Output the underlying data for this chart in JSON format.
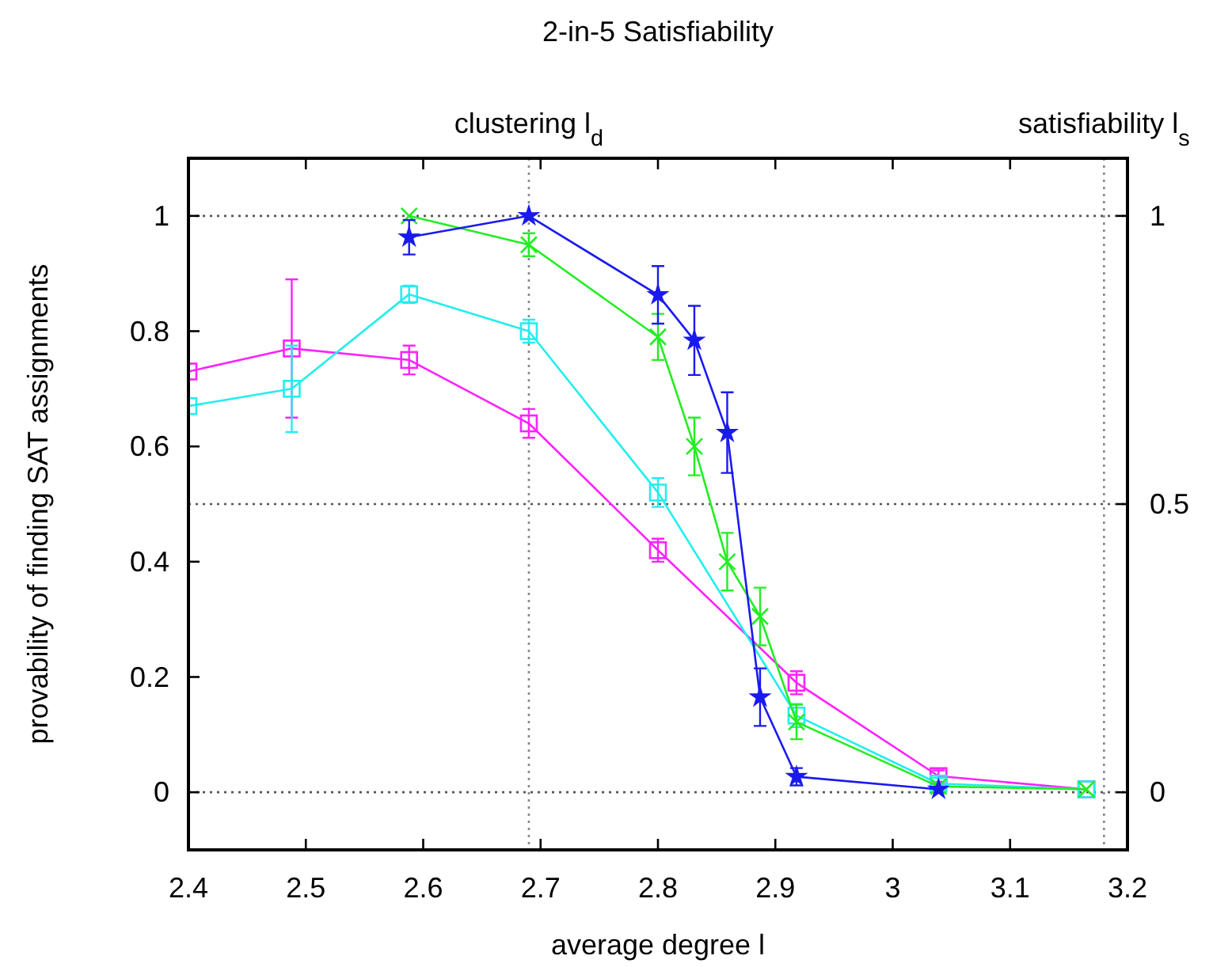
{
  "chart_data": {
    "type": "line",
    "title": "2-in-5 Satisfiability",
    "xlabel": "average degree l",
    "ylabel": "provability of finding SAT assignments",
    "xlim": [
      2.4,
      3.2
    ],
    "xticks": [
      2.4,
      2.5,
      2.6,
      2.7,
      2.8,
      2.9,
      3,
      3.1,
      3.2
    ],
    "ylim": [
      -0.1,
      1.1
    ],
    "yticks": [
      0,
      0.2,
      0.4,
      0.6,
      0.8,
      1
    ],
    "y2lim": [
      -0.1,
      1.1
    ],
    "y2ticks": [
      0,
      0.5,
      1
    ],
    "ref_lines": [
      {
        "axis": "y",
        "value": 0,
        "line_style": "dotted",
        "color": "#555555"
      },
      {
        "axis": "y",
        "value": 0.5,
        "line_style": "dotted",
        "color": "#555555"
      },
      {
        "axis": "y",
        "value": 1,
        "line_style": "dotted",
        "color": "#555555"
      },
      {
        "axis": "x",
        "value": 2.69,
        "label": "clustering l$_{d}$",
        "line_style": "dotted",
        "color": "#888888"
      },
      {
        "axis": "x",
        "value": 3.18,
        "label": "satisfiability l$_{s}$",
        "line_style": "dotted",
        "color": "#888888"
      }
    ],
    "grid": false,
    "line_style": "solid",
    "series": [
      {
        "color": "#ff22ff",
        "marker": "square",
        "x": [
          2.4,
          2.488,
          2.588,
          2.69,
          2.8,
          2.918,
          3.039,
          3.165
        ],
        "values": [
          0.73,
          0.77,
          0.75,
          0.64,
          0.42,
          0.19,
          0.028,
          0.005
        ],
        "errors": [
          null,
          0.12,
          0.025,
          0.025,
          0.02,
          0.02,
          0.01,
          null
        ]
      },
      {
        "color": "#22eeee",
        "marker": "square",
        "x": [
          2.4,
          2.488,
          2.588,
          2.69,
          2.8,
          2.918,
          3.039,
          3.165
        ],
        "values": [
          0.67,
          0.7,
          0.864,
          0.8,
          0.52,
          0.133,
          0.015,
          0.005
        ],
        "errors": [
          null,
          0.075,
          0.015,
          0.02,
          0.025,
          0.02,
          0.01,
          null
        ]
      },
      {
        "color": "#22ee22",
        "marker": "cross",
        "x": [
          2.588,
          2.69,
          2.8,
          2.831,
          2.859,
          2.887,
          2.918,
          3.039,
          3.165
        ],
        "values": [
          1,
          0.95,
          0.79,
          0.6,
          0.4,
          0.305,
          0.122,
          0.01,
          0.005
        ],
        "errors": [
          null,
          0.02,
          0.04,
          0.05,
          0.05,
          0.05,
          0.03,
          null,
          null
        ]
      },
      {
        "color": "#1a1aee",
        "marker": "star",
        "x": [
          2.588,
          2.69,
          2.8,
          2.831,
          2.859,
          2.887,
          2.918,
          3.039
        ],
        "values": [
          0.963,
          1,
          0.863,
          0.784,
          0.624,
          0.165,
          0.027,
          0.005
        ],
        "errors": [
          0.03,
          null,
          0.05,
          0.06,
          0.07,
          0.05,
          0.015,
          null
        ]
      }
    ]
  }
}
